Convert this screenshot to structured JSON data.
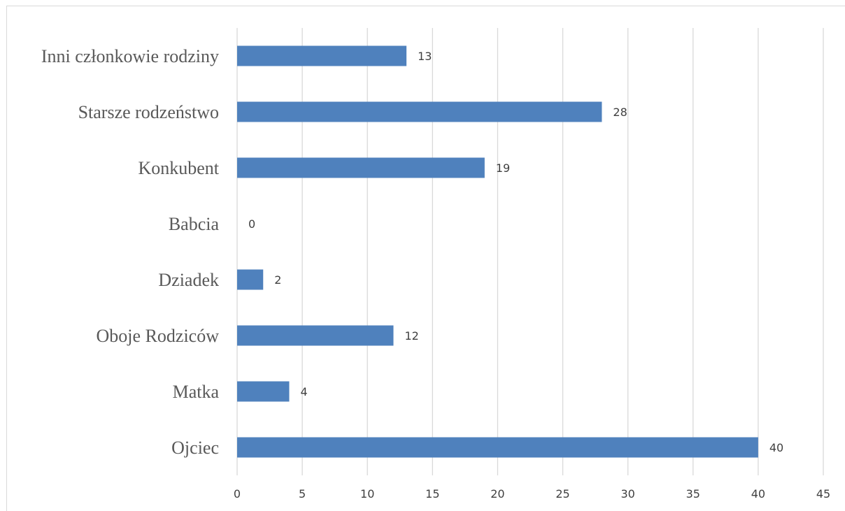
{
  "chart_data": {
    "type": "bar",
    "orientation": "horizontal",
    "categories": [
      "Ojciec",
      "Matka",
      "Oboje Rodziców",
      "Dziadek",
      "Babcia",
      "Konkubent",
      "Starsze rodzeństwo",
      "Inni członkowie rodziny"
    ],
    "values": [
      40,
      4,
      12,
      2,
      0,
      19,
      28,
      13
    ],
    "xlim": [
      0,
      45
    ],
    "xticks": [
      0,
      5,
      10,
      15,
      20,
      25,
      30,
      35,
      40,
      45
    ],
    "grid": true,
    "data_labels": true,
    "bar_color": "#4f81bd",
    "grid_color": "#d9d9d9"
  }
}
